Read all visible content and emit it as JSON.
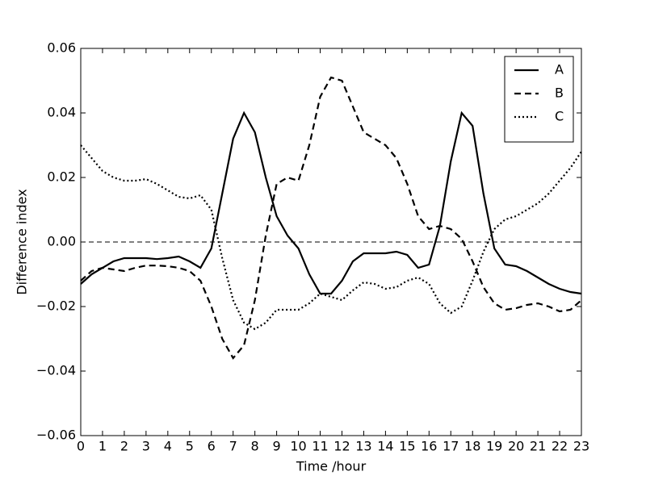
{
  "chart_data": {
    "type": "line",
    "xlabel": "Time /hour",
    "ylabel": "Difference index",
    "x": [
      0,
      0.5,
      1,
      1.5,
      2,
      2.5,
      3,
      3.5,
      4,
      4.5,
      5,
      5.5,
      6,
      6.5,
      7,
      7.5,
      8,
      8.5,
      9,
      9.5,
      10,
      10.5,
      11,
      11.5,
      12,
      12.5,
      13,
      13.5,
      14,
      14.5,
      15,
      15.5,
      16,
      16.5,
      17,
      17.5,
      18,
      18.5,
      19,
      19.5,
      20,
      20.5,
      21,
      21.5,
      22,
      22.5,
      23
    ],
    "series": [
      {
        "name": "A",
        "color": "#000000",
        "linestyle": "solid",
        "values": [
          -0.013,
          -0.01,
          -0.008,
          -0.006,
          -0.005,
          -0.005,
          -0.005,
          -0.0053,
          -0.005,
          -0.0045,
          -0.006,
          -0.008,
          -0.002,
          0.015,
          0.032,
          0.04,
          0.034,
          0.02,
          0.008,
          0.002,
          -0.002,
          -0.01,
          -0.016,
          -0.016,
          -0.012,
          -0.006,
          -0.0035,
          -0.0035,
          -0.0035,
          -0.003,
          -0.004,
          -0.008,
          -0.007,
          0.005,
          0.025,
          0.04,
          0.036,
          0.015,
          -0.002,
          -0.007,
          -0.0075,
          -0.009,
          -0.011,
          -0.013,
          -0.0145,
          -0.0155,
          -0.016
        ]
      },
      {
        "name": "B",
        "color": "#000000",
        "linestyle": "dashed",
        "values": [
          -0.012,
          -0.009,
          -0.008,
          -0.0085,
          -0.009,
          -0.008,
          -0.0073,
          -0.0073,
          -0.0075,
          -0.008,
          -0.009,
          -0.012,
          -0.02,
          -0.03,
          -0.036,
          -0.032,
          -0.018,
          0.002,
          0.018,
          0.02,
          0.019,
          0.03,
          0.045,
          0.051,
          0.05,
          0.042,
          0.034,
          0.032,
          0.03,
          0.026,
          0.018,
          0.008,
          0.004,
          0.005,
          0.004,
          0.001,
          -0.006,
          -0.014,
          -0.019,
          -0.021,
          -0.0205,
          -0.0195,
          -0.019,
          -0.02,
          -0.0215,
          -0.021,
          -0.018
        ]
      },
      {
        "name": "C",
        "color": "#000000",
        "linestyle": "dotted",
        "values": [
          0.03,
          0.026,
          0.022,
          0.02,
          0.019,
          0.019,
          0.0195,
          0.018,
          0.016,
          0.014,
          0.0135,
          0.0145,
          0.01,
          -0.005,
          -0.018,
          -0.025,
          -0.027,
          -0.025,
          -0.021,
          -0.021,
          -0.021,
          -0.019,
          -0.016,
          -0.017,
          -0.018,
          -0.015,
          -0.0125,
          -0.013,
          -0.0145,
          -0.014,
          -0.012,
          -0.011,
          -0.013,
          -0.019,
          -0.022,
          -0.02,
          -0.012,
          -0.003,
          0.004,
          0.007,
          0.008,
          0.01,
          0.012,
          0.015,
          0.019,
          0.023,
          0.028
        ]
      }
    ],
    "reference_line": 0,
    "xlim": [
      0,
      23
    ],
    "xticks": [
      0,
      1,
      2,
      3,
      4,
      5,
      6,
      7,
      8,
      9,
      10,
      11,
      12,
      13,
      14,
      15,
      16,
      17,
      18,
      19,
      20,
      21,
      22,
      23
    ],
    "ylim": [
      -0.06,
      0.06
    ],
    "yticks": [
      {
        "value": -0.06,
        "label": "−0.06"
      },
      {
        "value": -0.04,
        "label": "−0.04"
      },
      {
        "value": -0.02,
        "label": "−0.02"
      },
      {
        "value": 0,
        "label": "0.00"
      },
      0.02,
      0.04,
      0.06
    ],
    "grid": false,
    "legend": "upper right"
  }
}
